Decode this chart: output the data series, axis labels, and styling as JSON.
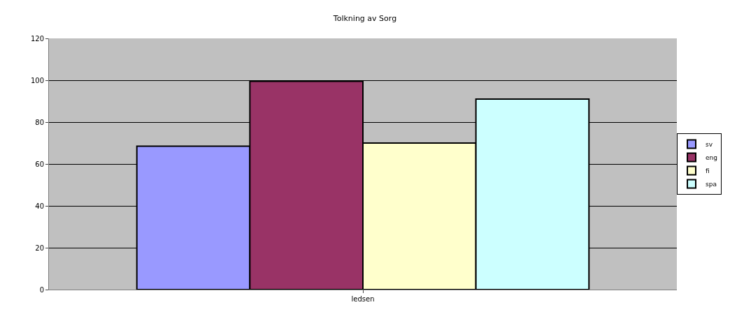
{
  "chart_data": {
    "type": "bar",
    "title": "Tolkning av Sorg",
    "categories": [
      "ledsen"
    ],
    "series": [
      {
        "name": "sv",
        "color": "#9999ff",
        "values": [
          68.5
        ]
      },
      {
        "name": "eng",
        "color": "#993366",
        "values": [
          99.5
        ]
      },
      {
        "name": "fi",
        "color": "#ffffcc",
        "values": [
          70
        ]
      },
      {
        "name": "spa",
        "color": "#ccffff",
        "values": [
          91
        ]
      }
    ],
    "ylim": [
      0,
      120
    ],
    "yticks": [
      0,
      20,
      40,
      60,
      80,
      100,
      120
    ],
    "grid": "y",
    "legend": "right"
  }
}
